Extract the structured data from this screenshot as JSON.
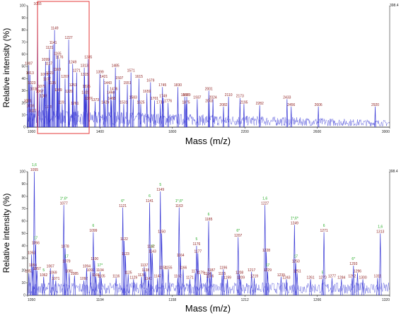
{
  "chart_data": [
    {
      "type": "line",
      "xlabel": "Mass (m/z)",
      "ylabel": "Relative intensity (%)",
      "xlim": [
        1000,
        3000
      ],
      "ylim": [
        0,
        100
      ],
      "y_max_label": "398.4",
      "x_ticks": [
        "1000",
        "1400",
        "1800",
        "2200",
        "2600",
        "3000"
      ],
      "y_ticks": [
        "0",
        "10",
        "20",
        "30",
        "40",
        "50",
        "60",
        "70",
        "80",
        "90",
        "100"
      ],
      "line_color": "#3b3bd6",
      "highlight_box": {
        "x_from": 1055,
        "x_to": 1340,
        "color": "#e53a3a"
      },
      "peaks": [
        {
          "x": 1055,
          "y": 100,
          "label": "1055"
        },
        {
          "x": 1007,
          "y": 51,
          "label": "1007"
        },
        {
          "x": 1013,
          "y": 43,
          "label": "1013"
        },
        {
          "x": 1023,
          "y": 35,
          "label": "1023"
        },
        {
          "x": 1036,
          "y": 30,
          "label": "1036"
        },
        {
          "x": 1001,
          "y": 20,
          "label": "1001"
        },
        {
          "x": 1016,
          "y": 16,
          "label": "1016"
        },
        {
          "x": 1027,
          "y": 12,
          "label": "1027"
        },
        {
          "x": 1093,
          "y": 42,
          "label": "1093"
        },
        {
          "x": 1079,
          "y": 32,
          "label": "1079"
        },
        {
          "x": 1067,
          "y": 28,
          "label": "1067"
        },
        {
          "x": 1089,
          "y": 24,
          "label": "1089"
        },
        {
          "x": 1115,
          "y": 15,
          "label": "1115"
        },
        {
          "x": 1149,
          "y": 80,
          "label": "1149"
        },
        {
          "x": 1141,
          "y": 68,
          "label": "1141"
        },
        {
          "x": 1121,
          "y": 64,
          "label": "1121"
        },
        {
          "x": 1099,
          "y": 54,
          "label": "1099"
        },
        {
          "x": 1117,
          "y": 51,
          "label": "1117"
        },
        {
          "x": 1123,
          "y": 43,
          "label": "1123"
        },
        {
          "x": 1107,
          "y": 38,
          "label": "1107"
        },
        {
          "x": 1135,
          "y": 35,
          "label": "1135"
        },
        {
          "x": 1176,
          "y": 56,
          "label": "1176"
        },
        {
          "x": 1165,
          "y": 59,
          "label": "1165"
        },
        {
          "x": 1163,
          "y": 46,
          "label": "1163"
        },
        {
          "x": 1169,
          "y": 29,
          "label": "1169"
        },
        {
          "x": 1191,
          "y": 19,
          "label": "1191"
        },
        {
          "x": 1227,
          "y": 72,
          "label": "1227"
        },
        {
          "x": 1249,
          "y": 52,
          "label": "1249"
        },
        {
          "x": 1207,
          "y": 40,
          "label": "1207"
        },
        {
          "x": 1229,
          "y": 28,
          "label": "1229"
        },
        {
          "x": 1251,
          "y": 33,
          "label": "1251"
        },
        {
          "x": 1271,
          "y": 45,
          "label": "1271"
        },
        {
          "x": 1261,
          "y": 18,
          "label": "1261"
        },
        {
          "x": 1335,
          "y": 56,
          "label": "1335"
        },
        {
          "x": 1313,
          "y": 49,
          "label": "1313"
        },
        {
          "x": 1315,
          "y": 42,
          "label": "1315"
        },
        {
          "x": 1325,
          "y": 32,
          "label": "1325"
        },
        {
          "x": 1320,
          "y": 27,
          "label": "1320"
        },
        {
          "x": 1337,
          "y": 22,
          "label": "1337"
        },
        {
          "x": 1399,
          "y": 44,
          "label": "1399"
        },
        {
          "x": 1421,
          "y": 40,
          "label": "1421"
        },
        {
          "x": 1373,
          "y": 21,
          "label": "1373"
        },
        {
          "x": 1485,
          "y": 49,
          "label": "1485"
        },
        {
          "x": 1443,
          "y": 35,
          "label": "1443"
        },
        {
          "x": 1476,
          "y": 30,
          "label": "1476"
        },
        {
          "x": 1460,
          "y": 27,
          "label": "1460"
        },
        {
          "x": 1465,
          "y": 22,
          "label": "1465"
        },
        {
          "x": 1429,
          "y": 19,
          "label": "1429"
        },
        {
          "x": 1507,
          "y": 39,
          "label": "1507"
        },
        {
          "x": 1551,
          "y": 35,
          "label": "1551"
        },
        {
          "x": 1531,
          "y": 19,
          "label": "1531"
        },
        {
          "x": 1571,
          "y": 45,
          "label": "1571"
        },
        {
          "x": 1583,
          "y": 23,
          "label": "1583"
        },
        {
          "x": 1615,
          "y": 40,
          "label": "1615"
        },
        {
          "x": 1679,
          "y": 37,
          "label": "1679"
        },
        {
          "x": 1659,
          "y": 28,
          "label": "1659"
        },
        {
          "x": 1701,
          "y": 22,
          "label": "1701"
        },
        {
          "x": 1625,
          "y": 19,
          "label": "1625"
        },
        {
          "x": 1733,
          "y": 19,
          "label": "1733"
        },
        {
          "x": 1745,
          "y": 33,
          "label": "1745"
        },
        {
          "x": 1749,
          "y": 24,
          "label": "1749"
        },
        {
          "x": 1776,
          "y": 20,
          "label": "1776"
        },
        {
          "x": 1830,
          "y": 33,
          "label": "1830"
        },
        {
          "x": 1868,
          "y": 25,
          "label": "1868"
        },
        {
          "x": 1875,
          "y": 19,
          "label": "1875"
        },
        {
          "x": 1937,
          "y": 23,
          "label": "1937"
        },
        {
          "x": 1879,
          "y": 25,
          "label": "1879"
        },
        {
          "x": 2001,
          "y": 30,
          "label": "2001"
        },
        {
          "x": 2024,
          "y": 23,
          "label": "2024"
        },
        {
          "x": 2003,
          "y": 20,
          "label": "2003"
        },
        {
          "x": 2110,
          "y": 25,
          "label": "2110"
        },
        {
          "x": 2082,
          "y": 17,
          "label": "2082"
        },
        {
          "x": 2173,
          "y": 24,
          "label": "2173"
        },
        {
          "x": 2195,
          "y": 19,
          "label": "2195"
        },
        {
          "x": 2282,
          "y": 18,
          "label": "2282"
        },
        {
          "x": 2433,
          "y": 23,
          "label": "2433"
        },
        {
          "x": 2456,
          "y": 17,
          "label": "2456"
        },
        {
          "x": 2606,
          "y": 17,
          "label": "2606"
        },
        {
          "x": 2920,
          "y": 17,
          "label": "2920"
        }
      ]
    },
    {
      "type": "line",
      "xlabel": "Mass (m/z)",
      "ylabel": "Relative intensity (%)",
      "xlim": [
        1050,
        1320
      ],
      "ylim": [
        0,
        100
      ],
      "y_max_label": "398.4",
      "x_ticks": [
        "1050",
        "1104",
        "1158",
        "1212",
        "1266",
        "1320"
      ],
      "y_ticks": [
        "0",
        "10",
        "20",
        "30",
        "40",
        "50",
        "60",
        "70",
        "80",
        "90",
        "100"
      ],
      "line_color": "#3b3bd6",
      "peaks": [
        {
          "x": 1055,
          "y": 100,
          "label": "1055",
          "annotation": "1,6"
        },
        {
          "x": 1051,
          "y": 18,
          "label": "1051"
        },
        {
          "x": 1053,
          "y": 33,
          "label": "1053"
        },
        {
          "x": 1054,
          "y": 23,
          "label": "1054"
        },
        {
          "x": 1056,
          "y": 41,
          "label": "1056",
          "annotation": "17"
        },
        {
          "x": 1057,
          "y": 20,
          "label": "1057"
        },
        {
          "x": 1062,
          "y": 15,
          "label": "1062",
          "annotation": "5"
        },
        {
          "x": 1067,
          "y": 22,
          "label": "1067"
        },
        {
          "x": 1069,
          "y": 17,
          "label": "1069"
        },
        {
          "x": 1071,
          "y": 12,
          "label": "1071"
        },
        {
          "x": 1077,
          "y": 73,
          "label": "1077",
          "annotation": "1*,6*"
        },
        {
          "x": 1078,
          "y": 38,
          "label": "1078"
        },
        {
          "x": 1079,
          "y": 26,
          "label": "1079",
          "annotation": "17"
        },
        {
          "x": 1081,
          "y": 18,
          "label": "1081"
        },
        {
          "x": 1085,
          "y": 16,
          "label": "1085"
        },
        {
          "x": 1092,
          "y": 12,
          "label": "1092"
        },
        {
          "x": 1094,
          "y": 22,
          "label": "1094"
        },
        {
          "x": 1097,
          "y": 19,
          "label": "1097"
        },
        {
          "x": 1099,
          "y": 51,
          "label": "1099",
          "annotation": "6"
        },
        {
          "x": 1100,
          "y": 28,
          "label": "1100"
        },
        {
          "x": 1101,
          "y": 15,
          "label": "1101"
        },
        {
          "x": 1104,
          "y": 19,
          "label": "1104",
          "annotation": "17*"
        },
        {
          "x": 1105,
          "y": 14,
          "label": "1105"
        },
        {
          "x": 1116,
          "y": 14,
          "label": "1116"
        },
        {
          "x": 1121,
          "y": 71,
          "label": "1121",
          "annotation": "6*"
        },
        {
          "x": 1122,
          "y": 44,
          "label": "1122"
        },
        {
          "x": 1123,
          "y": 32,
          "label": "1123"
        },
        {
          "x": 1125,
          "y": 17,
          "label": "1125"
        },
        {
          "x": 1129,
          "y": 13,
          "label": "1129"
        },
        {
          "x": 1135,
          "y": 15,
          "label": "1135"
        },
        {
          "x": 1137,
          "y": 23,
          "label": "1137"
        },
        {
          "x": 1138,
          "y": 19,
          "label": "1138"
        },
        {
          "x": 1140,
          "y": 12,
          "label": "1140"
        },
        {
          "x": 1141,
          "y": 75,
          "label": "1141",
          "annotation": "6"
        },
        {
          "x": 1142,
          "y": 38,
          "label": "1142"
        },
        {
          "x": 1143,
          "y": 34,
          "label": "1143",
          "annotation": "17"
        },
        {
          "x": 1147,
          "y": 14,
          "label": "1147"
        },
        {
          "x": 1149,
          "y": 84,
          "label": "1149",
          "annotation": "5"
        },
        {
          "x": 1150,
          "y": 50,
          "label": "1150"
        },
        {
          "x": 1151,
          "y": 21,
          "label": "1151"
        },
        {
          "x": 1155,
          "y": 21,
          "label": "1155"
        },
        {
          "x": 1162,
          "y": 14,
          "label": "1162"
        },
        {
          "x": 1163,
          "y": 71,
          "label": "1163",
          "annotation": "1*,6*"
        },
        {
          "x": 1164,
          "y": 31,
          "label": "1164"
        },
        {
          "x": 1166,
          "y": 21,
          "label": "1166"
        },
        {
          "x": 1171,
          "y": 13,
          "label": "1171"
        },
        {
          "x": 1175,
          "y": 18,
          "label": "1175"
        },
        {
          "x": 1176,
          "y": 40,
          "label": "1176",
          "annotation": "5"
        },
        {
          "x": 1177,
          "y": 34,
          "label": "1177"
        },
        {
          "x": 1179,
          "y": 17,
          "label": "1179"
        },
        {
          "x": 1184,
          "y": 16,
          "label": "1184"
        },
        {
          "x": 1185,
          "y": 60,
          "label": "1185",
          "annotation": "6"
        },
        {
          "x": 1186,
          "y": 14,
          "label": "1186"
        },
        {
          "x": 1187,
          "y": 19,
          "label": "1187"
        },
        {
          "x": 1195,
          "y": 16,
          "label": "1195"
        },
        {
          "x": 1196,
          "y": 21,
          "label": "1196"
        },
        {
          "x": 1199,
          "y": 13,
          "label": "1199"
        },
        {
          "x": 1207,
          "y": 47,
          "label": "1207",
          "annotation": "6*"
        },
        {
          "x": 1208,
          "y": 17,
          "label": "1208"
        },
        {
          "x": 1209,
          "y": 13,
          "label": "1209"
        },
        {
          "x": 1217,
          "y": 19,
          "label": "1217"
        },
        {
          "x": 1219,
          "y": 14,
          "label": "1219"
        },
        {
          "x": 1227,
          "y": 73,
          "label": "1227",
          "annotation": "1,6"
        },
        {
          "x": 1228,
          "y": 35,
          "label": "1228"
        },
        {
          "x": 1229,
          "y": 19,
          "label": "1229",
          "annotation": "17"
        },
        {
          "x": 1239,
          "y": 15,
          "label": "1239"
        },
        {
          "x": 1243,
          "y": 13,
          "label": "1243"
        },
        {
          "x": 1249,
          "y": 57,
          "label": "1249",
          "annotation": "1*,6*"
        },
        {
          "x": 1250,
          "y": 26,
          "label": "1250",
          "annotation": "17"
        },
        {
          "x": 1251,
          "y": 18,
          "label": "1251"
        },
        {
          "x": 1261,
          "y": 13,
          "label": "1261"
        },
        {
          "x": 1270,
          "y": 13,
          "label": "1270",
          "annotation": "5"
        },
        {
          "x": 1271,
          "y": 51,
          "label": "1271",
          "annotation": "6"
        },
        {
          "x": 1277,
          "y": 14,
          "label": "1277"
        },
        {
          "x": 1284,
          "y": 13,
          "label": "1284"
        },
        {
          "x": 1292,
          "y": 14,
          "label": "1292"
        },
        {
          "x": 1293,
          "y": 24,
          "label": "1293",
          "annotation": "6*"
        },
        {
          "x": 1296,
          "y": 18,
          "label": "1296"
        },
        {
          "x": 1300,
          "y": 13,
          "label": "1300"
        },
        {
          "x": 1311,
          "y": 14,
          "label": "1311"
        },
        {
          "x": 1313,
          "y": 50,
          "label": "1313",
          "annotation": "1,6"
        }
      ]
    }
  ]
}
